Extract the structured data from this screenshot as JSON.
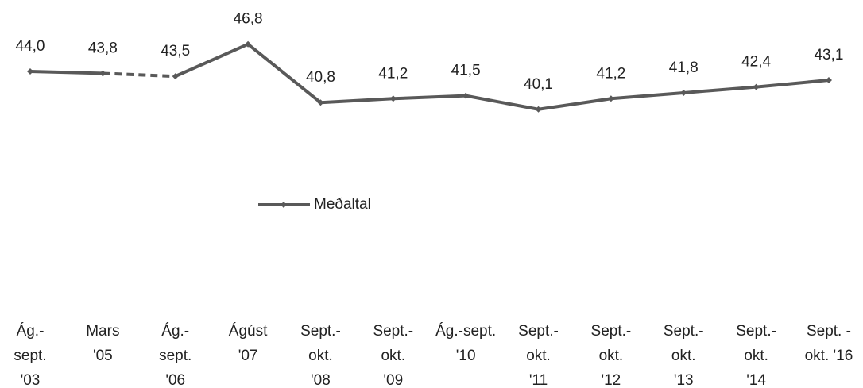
{
  "chart_data": {
    "type": "line",
    "categories": [
      "Ág.-\nsept.\n'03",
      "Mars\n'05",
      "Ág.-\nsept.\n'06",
      "Ágúst\n'07",
      "Sept.-\nokt.\n'08",
      "Sept.-\nokt.\n'09",
      "Ág.-sept.\n'10",
      "Sept.-\nokt.\n'11",
      "Sept.-\nokt.\n'12",
      "Sept.-\nokt.\n'13",
      "Sept.-\nokt.\n'14",
      "Sept. -\nokt. '16"
    ],
    "series": [
      {
        "name": "Meðaltal",
        "color": "#595959",
        "values": [
          44.0,
          43.8,
          43.5,
          46.8,
          40.8,
          41.2,
          41.5,
          40.1,
          41.2,
          41.8,
          42.4,
          43.1
        ],
        "value_labels": [
          "44,0",
          "43,8",
          "43,5",
          "46,8",
          "40,8",
          "41,2",
          "41,5",
          "40,1",
          "41,2",
          "41,8",
          "42,4",
          "43,1"
        ],
        "dashed_segments": [
          1
        ]
      }
    ],
    "ylim": [
      36,
      48
    ],
    "legend": "center"
  }
}
